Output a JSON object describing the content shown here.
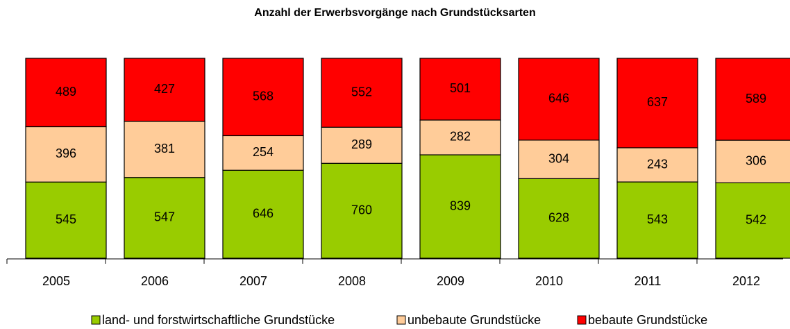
{
  "chart_data": {
    "type": "bar",
    "stacking": "percent",
    "title": "Anzahl der Erwerbsvorgänge nach Grundstücksarten",
    "categories": [
      "2005",
      "2006",
      "2007",
      "2008",
      "2009",
      "2010",
      "2011",
      "2012"
    ],
    "series": [
      {
        "name": "land- und forstwirtschaftliche Grundstücke",
        "color": "#99cc00",
        "values": [
          545,
          547,
          646,
          760,
          839,
          628,
          543,
          542
        ]
      },
      {
        "name": "unbebaute Grundstücke",
        "color": "#ffcc99",
        "values": [
          396,
          381,
          254,
          289,
          282,
          304,
          243,
          306
        ]
      },
      {
        "name": "bebaute Grundstücke",
        "color": "#ff0000",
        "values": [
          489,
          427,
          568,
          552,
          501,
          646,
          637,
          589
        ]
      }
    ],
    "legend": "bottom"
  }
}
